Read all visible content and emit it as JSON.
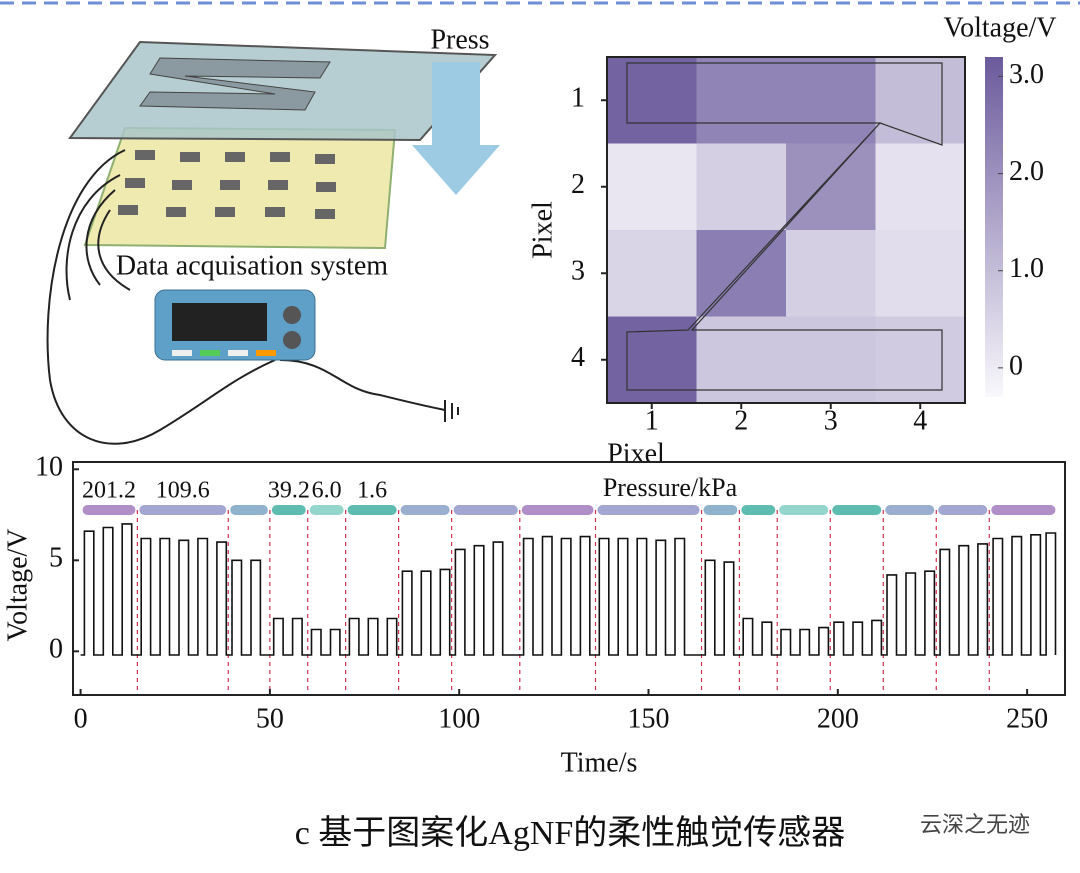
{
  "illustration": {
    "press": "Press",
    "system_label": "Data acquisation system"
  },
  "caption": "c 基于图案化AgNF的柔性触觉传感器",
  "watermark": "云深之无迹",
  "chart_data": [
    {
      "type": "heatmap",
      "xlabel": "Pixel",
      "ylabel": "Pixel",
      "xlim": [
        0.5,
        4.5
      ],
      "ylim": [
        4.5,
        0.5
      ],
      "xticks": [
        1,
        2,
        3,
        4
      ],
      "yticks": [
        1,
        2,
        3,
        4
      ],
      "values": [
        [
          3.0,
          2.3,
          2.3,
          1.0
        ],
        [
          0.1,
          0.6,
          2.0,
          0.2
        ],
        [
          0.5,
          2.4,
          0.6,
          0.3
        ],
        [
          3.0,
          0.8,
          0.8,
          0.7
        ]
      ],
      "colorbar_label": "Voltage/V",
      "clim": [
        -0.3,
        3.2
      ],
      "cticks": [
        0,
        {
          "value": 1,
          "label": "1.0"
        },
        {
          "value": 2,
          "label": "2.0"
        },
        {
          "value": 3,
          "label": "3.0"
        }
      ],
      "colors": [
        "#f9f8fc",
        "#6b5a9c"
      ]
    },
    {
      "type": "line",
      "xlabel": "Time/s",
      "ylabel": "Voltage/V",
      "xlim": [
        -2,
        260
      ],
      "ylim": [
        -2.4,
        10.4
      ],
      "xticks": [
        0,
        50,
        100,
        150,
        200,
        250
      ],
      "yticks": [
        0,
        5,
        10
      ],
      "color": "#111111",
      "pressure_label": "Pressure/kPa",
      "pressure_segments": [
        {
          "start": 0,
          "end": 15,
          "label": "201.2",
          "color": "#b08ec8"
        },
        {
          "start": 15,
          "end": 39,
          "label": "109.6",
          "color": "#a2a6d0"
        },
        {
          "start": 39,
          "end": 50,
          "color": "#8fb3cc"
        },
        {
          "start": 50,
          "end": 60,
          "label": "39.2",
          "color": "#5fbcb0"
        },
        {
          "start": 60,
          "end": 70,
          "label": "6.0",
          "color": "#94d6cb"
        },
        {
          "start": 70,
          "end": 84,
          "label": "1.6",
          "color": "#5fbcb0"
        },
        {
          "start": 84,
          "end": 98,
          "color": "#9aafd0"
        },
        {
          "start": 98,
          "end": 116,
          "color": "#a2a6d0"
        },
        {
          "start": 116,
          "end": 136,
          "color": "#b08ec8"
        },
        {
          "start": 136,
          "end": 164,
          "color": "#a2a6d0"
        },
        {
          "start": 164,
          "end": 174,
          "color": "#8fb3cc"
        },
        {
          "start": 174,
          "end": 184,
          "color": "#5fbcb0"
        },
        {
          "start": 184,
          "end": 198,
          "color": "#94d6cb"
        },
        {
          "start": 198,
          "end": 212,
          "color": "#5fbcb0"
        },
        {
          "start": 212,
          "end": 226,
          "color": "#9aafd0"
        },
        {
          "start": 226,
          "end": 240,
          "color": "#a2a6d0"
        },
        {
          "start": 240,
          "end": 258,
          "color": "#b08ec8"
        }
      ],
      "x": [
        0,
        1,
        1,
        3.5,
        3.5,
        6,
        6,
        8.5,
        8.5,
        11,
        11,
        13.5,
        13.5,
        16,
        16,
        18.5,
        18.5,
        21,
        21,
        23.5,
        23.5,
        26,
        26,
        28.5,
        28.5,
        31,
        31,
        33.5,
        33.5,
        36,
        36,
        38.5,
        38.5,
        40,
        40,
        42.5,
        42.5,
        45,
        45,
        47.5,
        47.5,
        51,
        51,
        53.5,
        53.5,
        56,
        56,
        58.5,
        58.5,
        61,
        61,
        63.5,
        63.5,
        66,
        66,
        68.5,
        68.5,
        71,
        71,
        73.5,
        73.5,
        76,
        76,
        78.5,
        78.5,
        81,
        81,
        83.5,
        83.5,
        85,
        85,
        87.5,
        87.5,
        90,
        90,
        92.5,
        92.5,
        95,
        95,
        97.5,
        97.5,
        99,
        99,
        101.5,
        101.5,
        104,
        104,
        106.5,
        106.5,
        109,
        109,
        111.5,
        111.5,
        117,
        117,
        119.5,
        119.5,
        122,
        122,
        124.5,
        124.5,
        127,
        127,
        129.5,
        129.5,
        132,
        132,
        134.5,
        134.5,
        137,
        137,
        139.5,
        139.5,
        142,
        142,
        144.5,
        144.5,
        147,
        147,
        149.5,
        149.5,
        152,
        152,
        154.5,
        154.5,
        157,
        157,
        159.5,
        159.5,
        165,
        165,
        167.5,
        167.5,
        170,
        170,
        172.5,
        172.5,
        175,
        175,
        177.5,
        177.5,
        180,
        180,
        182.5,
        182.5,
        185,
        185,
        187.5,
        187.5,
        190,
        190,
        192.5,
        192.5,
        195,
        195,
        197.5,
        197.5,
        199,
        199,
        201.5,
        201.5,
        204,
        204,
        206.5,
        206.5,
        209,
        209,
        211.5,
        211.5,
        213,
        213,
        215.5,
        215.5,
        218,
        218,
        220.5,
        220.5,
        223,
        223,
        225.5,
        225.5,
        227,
        227,
        229.5,
        229.5,
        232,
        232,
        234.5,
        234.5,
        237,
        237,
        239.5,
        239.5,
        241,
        241,
        243.5,
        243.5,
        246,
        246,
        248.5,
        248.5,
        251,
        251,
        253.5,
        253.5,
        255,
        255,
        257.5,
        257.5
      ],
      "values": [
        -0.2,
        -0.2,
        6.6,
        6.6,
        -0.2,
        -0.2,
        6.8,
        6.8,
        -0.2,
        -0.2,
        7.0,
        7.0,
        -0.2,
        -0.2,
        6.2,
        6.2,
        -0.2,
        -0.2,
        6.2,
        6.2,
        -0.2,
        -0.2,
        6.1,
        6.1,
        -0.2,
        -0.2,
        6.2,
        6.2,
        -0.2,
        -0.2,
        6.0,
        6.0,
        -0.2,
        -0.2,
        5.0,
        5.0,
        -0.2,
        -0.2,
        5.0,
        5.0,
        -0.2,
        -0.2,
        1.8,
        1.8,
        -0.2,
        -0.2,
        1.8,
        1.8,
        -0.2,
        -0.2,
        1.2,
        1.2,
        -0.2,
        -0.2,
        1.2,
        1.2,
        -0.2,
        -0.2,
        1.8,
        1.8,
        -0.2,
        -0.2,
        1.8,
        1.8,
        -0.2,
        -0.2,
        1.8,
        1.8,
        -0.2,
        -0.2,
        4.4,
        4.4,
        -0.2,
        -0.2,
        4.4,
        4.4,
        -0.2,
        -0.2,
        4.5,
        4.5,
        -0.2,
        -0.2,
        5.6,
        5.6,
        -0.2,
        -0.2,
        5.8,
        5.8,
        -0.2,
        -0.2,
        6.0,
        6.0,
        -0.2,
        -0.2,
        6.2,
        6.2,
        -0.2,
        -0.2,
        6.3,
        6.3,
        -0.2,
        -0.2,
        6.2,
        6.2,
        -0.2,
        -0.2,
        6.3,
        6.3,
        -0.2,
        -0.2,
        6.2,
        6.2,
        -0.2,
        -0.2,
        6.2,
        6.2,
        -0.2,
        -0.2,
        6.2,
        6.2,
        -0.2,
        -0.2,
        6.1,
        6.1,
        -0.2,
        -0.2,
        6.2,
        6.2,
        -0.2,
        -0.2,
        5.0,
        5.0,
        -0.2,
        -0.2,
        4.9,
        4.9,
        -0.2,
        -0.2,
        1.8,
        1.8,
        -0.2,
        -0.2,
        1.6,
        1.6,
        -0.2,
        -0.2,
        1.2,
        1.2,
        -0.2,
        -0.2,
        1.2,
        1.2,
        -0.2,
        -0.2,
        1.3,
        1.3,
        -0.2,
        -0.2,
        1.6,
        1.6,
        -0.2,
        -0.2,
        1.6,
        1.6,
        -0.2,
        -0.2,
        1.7,
        1.7,
        -0.2,
        -0.2,
        4.2,
        4.2,
        -0.2,
        -0.2,
        4.3,
        4.3,
        -0.2,
        -0.2,
        4.4,
        4.4,
        -0.2,
        -0.2,
        5.6,
        5.6,
        -0.2,
        -0.2,
        5.8,
        5.8,
        -0.2,
        -0.2,
        5.9,
        5.9,
        -0.2,
        -0.2,
        6.2,
        6.2,
        -0.2,
        -0.2,
        6.3,
        6.3,
        -0.2,
        -0.2,
        6.4,
        6.4,
        -0.2,
        -0.2,
        6.5,
        6.5,
        -0.2
      ]
    }
  ]
}
